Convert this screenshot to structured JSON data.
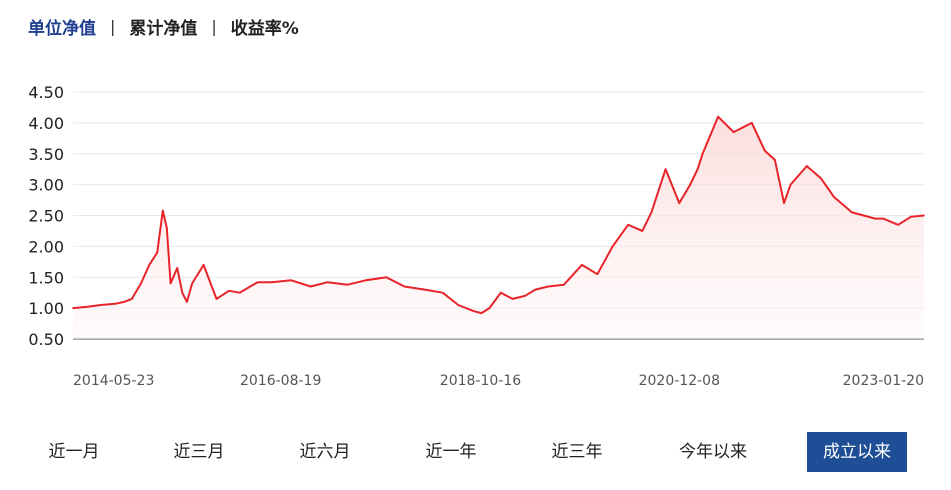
{
  "tabs": [
    {
      "label": "单位净值",
      "active": true
    },
    {
      "label": "累计净值",
      "active": false
    },
    {
      "label": "收益率%",
      "active": false
    }
  ],
  "tab_separator": "|",
  "periods": [
    {
      "label": "近一月",
      "active": false
    },
    {
      "label": "近三月",
      "active": false
    },
    {
      "label": "近六月",
      "active": false
    },
    {
      "label": "近一年",
      "active": false
    },
    {
      "label": "近三年",
      "active": false
    },
    {
      "label": "今年以来",
      "active": false
    },
    {
      "label": "成立以来",
      "active": true
    }
  ],
  "colors": {
    "line": "#e8242a",
    "fill": "#fde8e8",
    "active_tab": "#1f3f8f",
    "active_button": "#1e4e95",
    "grid": "#e8e8ee",
    "axis": "#555555"
  },
  "chart_data": {
    "type": "area",
    "title": "",
    "xlabel": "",
    "ylabel": "",
    "ylim": [
      0.5,
      4.5
    ],
    "yticks": [
      "4.50",
      "4.00",
      "3.50",
      "3.00",
      "2.50",
      "2.00",
      "1.50",
      "1.00",
      "0.50"
    ],
    "xticks": [
      "2014-05-23",
      "2016-08-19",
      "2018-10-16",
      "2020-12-08",
      "2023-01-20"
    ],
    "xlim": [
      "2014-05-23",
      "2023-07-31"
    ],
    "grid": true,
    "series": [
      {
        "x": [
          "2014-05-23",
          "2014-07-15",
          "2014-09-10",
          "2014-11-05",
          "2014-12-10",
          "2015-01-10",
          "2015-02-15",
          "2015-03-20",
          "2015-04-20",
          "2015-05-12",
          "2015-05-28",
          "2015-06-12",
          "2015-07-08",
          "2015-07-28",
          "2015-08-15",
          "2015-09-05",
          "2015-10-20",
          "2015-12-10",
          "2016-01-28",
          "2016-03-10",
          "2016-05-20",
          "2016-07-15",
          "2016-09-30",
          "2016-12-15",
          "2017-02-20",
          "2017-05-10",
          "2017-07-20",
          "2017-10-10",
          "2017-12-20",
          "2018-03-10",
          "2018-05-20",
          "2018-07-20",
          "2018-09-20",
          "2018-10-20",
          "2018-11-20",
          "2019-01-04",
          "2019-02-20",
          "2019-04-10",
          "2019-05-20",
          "2019-07-10",
          "2019-09-10",
          "2019-11-20",
          "2020-01-20",
          "2020-03-20",
          "2020-05-20",
          "2020-07-15",
          "2020-08-20",
          "2020-10-15",
          "2020-12-08",
          "2021-01-20",
          "2021-02-18",
          "2021-03-10",
          "2021-05-10",
          "2021-07-10",
          "2021-09-20",
          "2021-11-10",
          "2021-12-20",
          "2022-01-25",
          "2022-02-20",
          "2022-04-25",
          "2022-06-20",
          "2022-08-10",
          "2022-10-20",
          "2023-01-20",
          "2023-02-20",
          "2023-04-20",
          "2023-06-10",
          "2023-07-31"
        ],
        "values": [
          1.0,
          1.02,
          1.05,
          1.07,
          1.1,
          1.15,
          1.4,
          1.7,
          1.9,
          2.58,
          2.3,
          1.4,
          1.65,
          1.25,
          1.1,
          1.4,
          1.7,
          1.15,
          1.28,
          1.25,
          1.42,
          1.42,
          1.45,
          1.35,
          1.42,
          1.38,
          1.45,
          1.5,
          1.35,
          1.3,
          1.25,
          1.05,
          0.95,
          0.92,
          1.0,
          1.25,
          1.15,
          1.2,
          1.3,
          1.35,
          1.38,
          1.7,
          1.55,
          2.0,
          2.35,
          2.25,
          2.55,
          3.25,
          2.7,
          3.0,
          3.25,
          3.5,
          4.1,
          3.85,
          4.0,
          3.55,
          3.4,
          2.7,
          3.0,
          3.3,
          3.1,
          2.8,
          2.55,
          2.45,
          2.45,
          2.35,
          2.48,
          2.5
        ]
      }
    ]
  }
}
